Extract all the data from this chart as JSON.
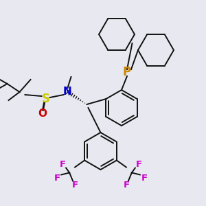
{
  "bg_color": "#e8e8f0",
  "atom_colors": {
    "P": "#cc8800",
    "N": "#0000cc",
    "S": "#cccc00",
    "O": "#cc0000",
    "F": "#cc00cc",
    "C": "#111111",
    "H": "#111111"
  },
  "font_size_atom": 10,
  "font_size_small": 8.5,
  "line_width": 1.4,
  "line_color": "#111111",
  "figsize": [
    3.0,
    3.0
  ],
  "dpi": 100
}
